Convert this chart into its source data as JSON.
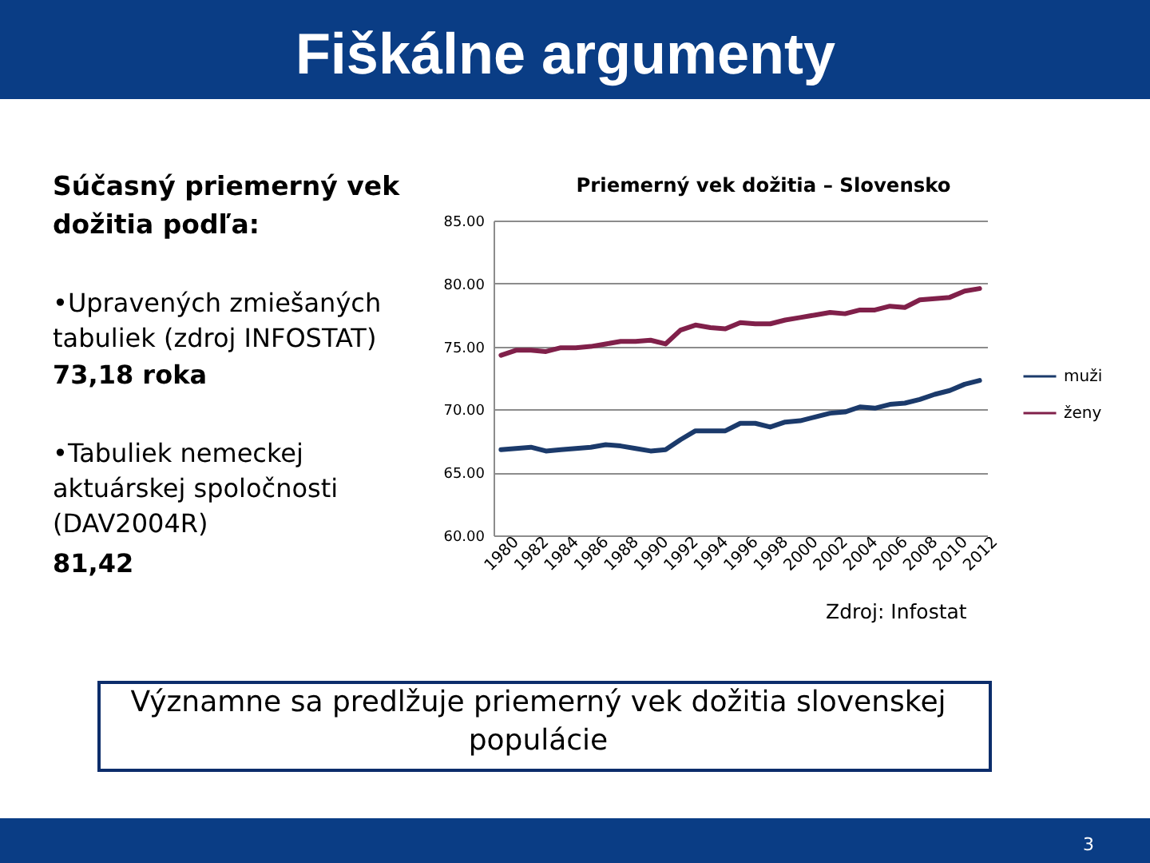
{
  "chart_data": {
    "type": "line",
    "title": "Fiškálne argumenty",
    "subtitle": "Priemerný vek dožitia – Slovensko",
    "categories": [
      "1980",
      null,
      "1982",
      null,
      "1984",
      null,
      "1986",
      null,
      "1988",
      null,
      "1990",
      null,
      "1992",
      null,
      "1994",
      null,
      "1996",
      null,
      "1998",
      null,
      "2000",
      null,
      "2002",
      null,
      "2004",
      null,
      "2006",
      null,
      "2008",
      null,
      "2010",
      null,
      "2012"
    ],
    "series": [
      {
        "name": "muži",
        "color": "#1b3a6b",
        "values": [
          66.8,
          66.9,
          67.0,
          66.7,
          66.8,
          66.9,
          67.0,
          67.2,
          67.1,
          66.9,
          66.7,
          66.8,
          67.6,
          68.3,
          68.3,
          68.3,
          68.9,
          68.9,
          68.6,
          69.0,
          69.1,
          69.4,
          69.7,
          69.8,
          70.2,
          70.1,
          70.4,
          70.5,
          70.8,
          71.2,
          71.5,
          72.0,
          72.3
        ]
      },
      {
        "name": "ženy",
        "color": "#80204a",
        "values": [
          74.3,
          74.7,
          74.7,
          74.6,
          74.9,
          74.9,
          75.0,
          75.2,
          75.4,
          75.4,
          75.5,
          75.2,
          76.3,
          76.7,
          76.5,
          76.4,
          76.9,
          76.8,
          76.8,
          77.1,
          77.3,
          77.5,
          77.7,
          77.6,
          77.9,
          77.9,
          78.2,
          78.1,
          78.7,
          78.8,
          78.9,
          79.4,
          79.6
        ]
      }
    ],
    "ylim": [
      60,
      85
    ],
    "yticks": [
      {
        "value": 60,
        "label": "60.00"
      },
      {
        "value": 65,
        "label": "65.00"
      },
      {
        "value": 70,
        "label": "70.00"
      },
      {
        "value": 75,
        "label": "75.00"
      },
      {
        "value": 80,
        "label": "80.00"
      },
      {
        "value": 85,
        "label": "85.00"
      }
    ],
    "grid": "y",
    "legend": "right",
    "annotations": [
      "Súčasný priemerný vek dožitia podľa:",
      "•Upravených zmiešaných tabuliek (zdroj INFOSTAT)",
      "73,18 roka",
      "•Tabuliek nemeckej aktuárskej spoločnosti (DAV2004R)",
      "81,42",
      "Zdroj: Infostat",
      "Významne sa predlžuje priemerný vek dožitia slovenskej populácie",
      "3"
    ]
  }
}
